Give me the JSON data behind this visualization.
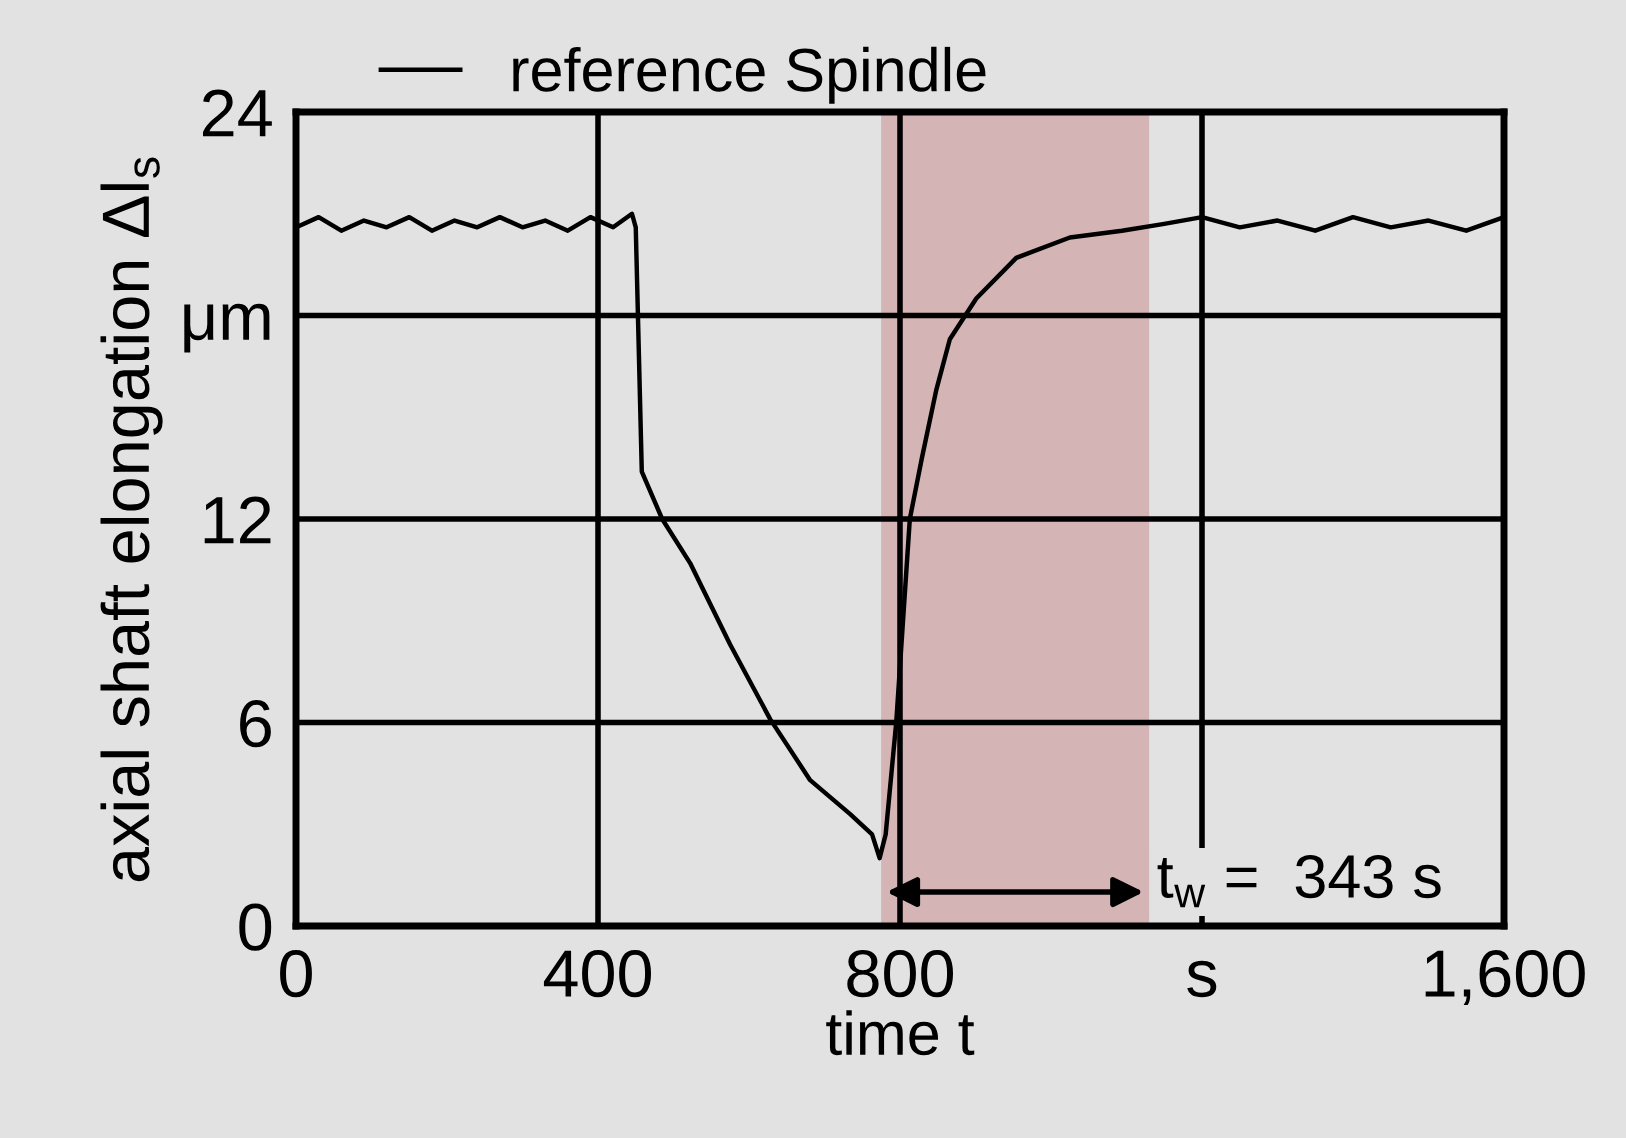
{
  "chart_data": {
    "type": "line",
    "xlabel": "time t",
    "ylabel": "axial shaft elongation Δl$_{s}$",
    "xlim": [
      0,
      1600
    ],
    "ylim": [
      0,
      24
    ],
    "xticks": [
      0,
      400,
      800,
      {
        "value": 1200,
        "label": "s"
      },
      {
        "value": 1600,
        "label": "1,600"
      }
    ],
    "yticks": [
      0,
      6,
      12,
      {
        "value": 18,
        "label": "μm"
      },
      24
    ],
    "grid": true,
    "legend": "top left",
    "marker": "none",
    "line_style": "solid",
    "series": [
      {
        "name": "reference Spindle",
        "color": "#000000",
        "x": [
          0,
          30,
          60,
          90,
          120,
          150,
          180,
          210,
          240,
          270,
          300,
          330,
          360,
          390,
          420,
          445,
          450,
          458,
          485,
          522,
          575,
          628,
          681,
          734,
          763,
          773,
          781,
          795,
          813,
          829,
          848,
          866,
          901,
          954,
          1025,
          1094,
          1150,
          1200,
          1250,
          1300,
          1350,
          1400,
          1450,
          1500,
          1550,
          1600
        ],
        "values": [
          20.6,
          20.9,
          20.5,
          20.8,
          20.6,
          20.9,
          20.5,
          20.8,
          20.6,
          20.9,
          20.6,
          20.8,
          20.5,
          20.9,
          20.6,
          21.0,
          20.6,
          13.4,
          12.0,
          10.7,
          8.3,
          6.1,
          4.3,
          3.3,
          2.7,
          2.0,
          2.7,
          6.0,
          12.0,
          13.8,
          15.8,
          17.3,
          18.5,
          19.7,
          20.3,
          20.5,
          20.7,
          20.9,
          20.6,
          20.8,
          20.5,
          20.9,
          20.6,
          20.8,
          20.5,
          20.9
        ]
      }
    ],
    "bands": [
      {
        "axis": "x",
        "from": 775,
        "to": 1130,
        "color": "#d4b4b5"
      }
    ],
    "annotations": [
      "t$_{w}$ =  343 s"
    ]
  }
}
